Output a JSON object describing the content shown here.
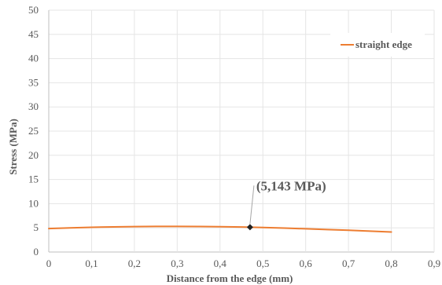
{
  "chart_data": {
    "type": "line",
    "title": "",
    "xlabel": "Distance from the edge (mm)",
    "ylabel": "Stress (MPa)",
    "xlim": [
      0,
      0.9
    ],
    "ylim": [
      0,
      50
    ],
    "x_ticks": [
      "0",
      "0,1",
      "0,2",
      "0,3",
      "0,4",
      "0,5",
      "0,6",
      "0,7",
      "0,8",
      "0,9"
    ],
    "y_ticks": [
      "0",
      "5",
      "10",
      "15",
      "20",
      "25",
      "30",
      "35",
      "40",
      "45",
      "50"
    ],
    "grid": true,
    "legend": {
      "position": "top-right",
      "entries": [
        {
          "name": "straight edge",
          "color": "#ED7D31"
        }
      ]
    },
    "series": [
      {
        "name": "straight edge",
        "color": "#ED7D31",
        "x": [
          0,
          0.05,
          0.1,
          0.15,
          0.2,
          0.25,
          0.3,
          0.35,
          0.4,
          0.45,
          0.5,
          0.55,
          0.6,
          0.65,
          0.7,
          0.75,
          0.8
        ],
        "y": [
          4.85,
          5.0,
          5.12,
          5.2,
          5.26,
          5.29,
          5.3,
          5.28,
          5.24,
          5.18,
          5.08,
          4.95,
          4.8,
          4.65,
          4.5,
          4.32,
          4.15
        ]
      }
    ],
    "annotations": [
      {
        "text": "(5,143 MPa)",
        "point": {
          "x": 0.47,
          "y": 5.143
        },
        "color": "#222222"
      }
    ]
  }
}
